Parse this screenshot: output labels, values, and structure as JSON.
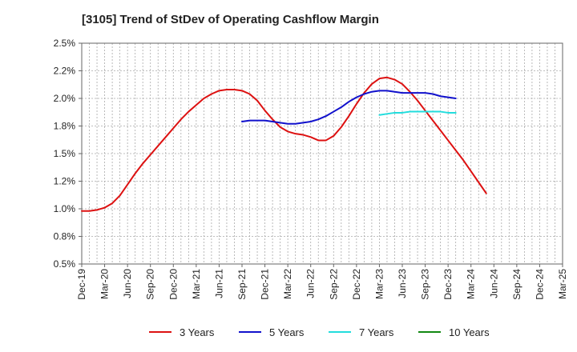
{
  "chart_data": {
    "type": "line",
    "title": "[3105]  Trend of StDev of Operating Cashflow Margin",
    "xlabel": "",
    "ylabel": "",
    "ylim": [
      0.5,
      2.5
    ],
    "y_ticks": [
      0.5,
      0.75,
      1.0,
      1.25,
      1.5,
      1.75,
      2.0,
      2.25,
      2.5
    ],
    "y_tick_labels": [
      "0.5%",
      "0.8%",
      "1.0%",
      "1.2%",
      "1.5%",
      "1.8%",
      "2.0%",
      "2.2%",
      "2.5%"
    ],
    "x_tick_labels": [
      "Dec-19",
      "Mar-20",
      "Jun-20",
      "Sep-20",
      "Dec-20",
      "Mar-21",
      "Jun-21",
      "Sep-21",
      "Dec-21",
      "Mar-22",
      "Jun-22",
      "Sep-22",
      "Dec-22",
      "Mar-23",
      "Jun-23",
      "Sep-23",
      "Dec-23",
      "Mar-24",
      "Jun-24",
      "Sep-24",
      "Dec-24",
      "Mar-25"
    ],
    "grid": true,
    "legend_position": "bottom",
    "series": [
      {
        "name": "3 Years",
        "color": "#dd1111",
        "start_index": 0,
        "values": [
          0.98,
          0.98,
          0.99,
          1.01,
          1.05,
          1.12,
          1.22,
          1.32,
          1.41,
          1.49,
          1.57,
          1.65,
          1.73,
          1.81,
          1.88,
          1.94,
          2.0,
          2.04,
          2.07,
          2.08,
          2.08,
          2.07,
          2.04,
          1.98,
          1.89,
          1.81,
          1.74,
          1.7,
          1.68,
          1.67,
          1.65,
          1.62,
          1.62,
          1.66,
          1.74,
          1.84,
          1.95,
          2.05,
          2.13,
          2.18,
          2.19,
          2.17,
          2.13,
          2.06,
          1.98,
          1.89,
          1.8,
          1.71,
          1.62,
          1.53,
          1.44,
          1.34,
          1.24,
          1.14
        ]
      },
      {
        "name": "5 Years",
        "color": "#1111cc",
        "start_index": 21,
        "values": [
          1.79,
          1.8,
          1.8,
          1.8,
          1.79,
          1.78,
          1.77,
          1.77,
          1.78,
          1.79,
          1.81,
          1.84,
          1.88,
          1.92,
          1.97,
          2.01,
          2.04,
          2.06,
          2.07,
          2.07,
          2.06,
          2.05,
          2.05,
          2.05,
          2.05,
          2.04,
          2.02,
          2.01,
          2.0
        ]
      },
      {
        "name": "7 Years",
        "color": "#22dddd",
        "start_index": 39,
        "values": [
          1.85,
          1.86,
          1.87,
          1.87,
          1.88,
          1.88,
          1.88,
          1.88,
          1.88,
          1.87,
          1.87
        ]
      },
      {
        "name": "10 Years",
        "color": "#118811",
        "start_index": 0,
        "values": []
      }
    ]
  }
}
